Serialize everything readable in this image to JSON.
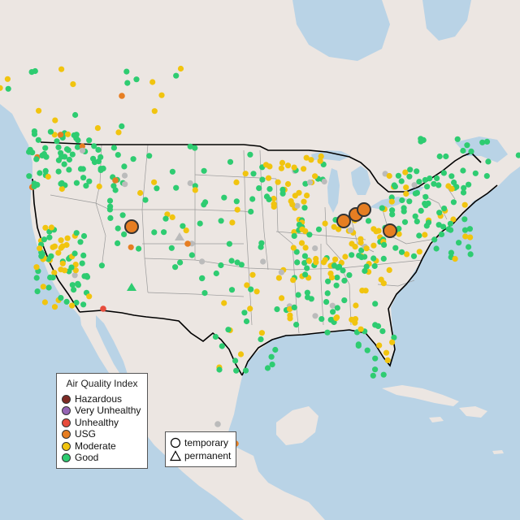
{
  "legend": {
    "title": "Air Quality Index",
    "categories": [
      {
        "label": "Hazardous",
        "color": "#7e2b25"
      },
      {
        "label": "Very Unhealthy",
        "color": "#9464b4"
      },
      {
        "label": "Unhealthy",
        "color": "#e74c3c"
      },
      {
        "label": "USG",
        "color": "#e67e22"
      },
      {
        "label": "Moderate",
        "color": "#f1c40f"
      },
      {
        "label": "Good",
        "color": "#2ecc71"
      }
    ]
  },
  "shape_legend": {
    "temporary": "temporary",
    "permanent": "permanent"
  },
  "colors": {
    "ocean": "#b9d3e6",
    "land": "#ece6e2",
    "country_border": "#000000",
    "state_border": "#999999",
    "no_data": "#bbbbbb"
  },
  "map_type": "air quality monitor station map, contiguous United States with Canada and Mexico context"
}
